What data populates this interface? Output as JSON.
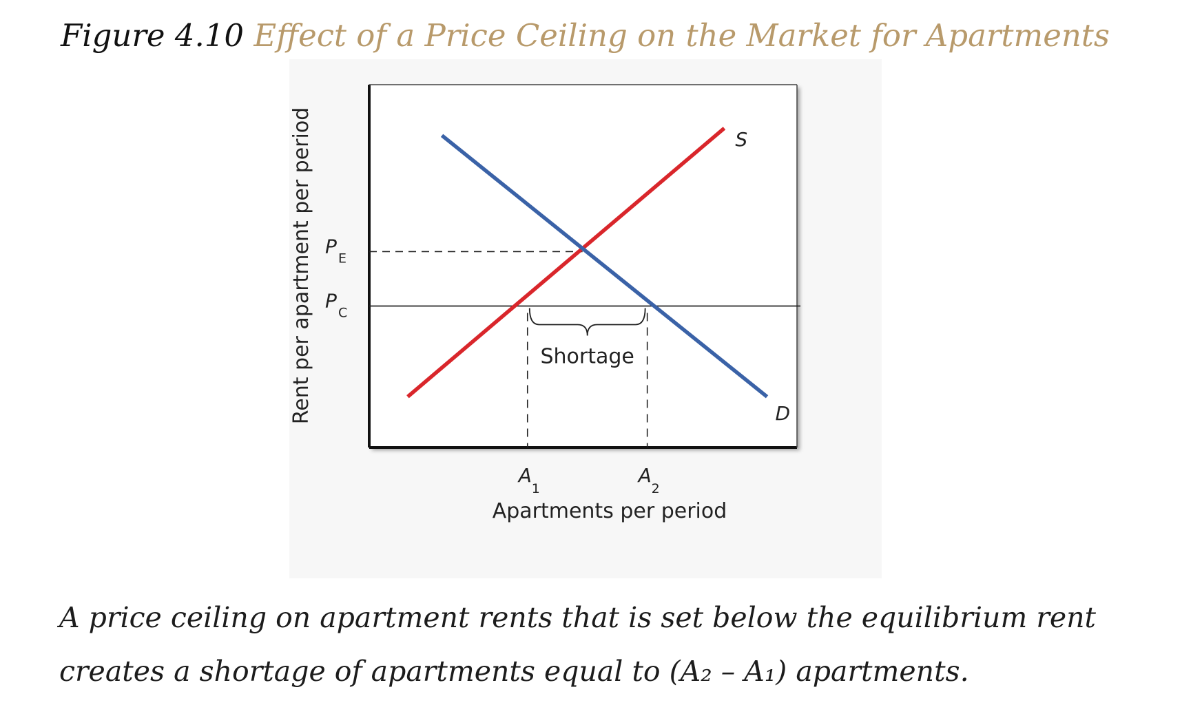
{
  "figure": {
    "label": "Figure 4.10",
    "title": "Effect of a Price Ceiling on the Market for Apartments"
  },
  "description": "A price ceiling on apartment rents that is set below the equilibrium rent creates a shortage of apartments equal to (A₂ – A₁) apartments.",
  "chart_data": {
    "type": "line",
    "title": "",
    "xlabel": "Apartments per period",
    "ylabel": "Rent per apartment per period",
    "xlim": [
      0,
      10
    ],
    "ylim": [
      0,
      10
    ],
    "grid": false,
    "legend": "none",
    "series": [
      {
        "name": "S",
        "color": "#d9262b",
        "x": [
          0.9,
          8.3
        ],
        "y": [
          1.4,
          8.8
        ]
      },
      {
        "name": "D",
        "color": "#3a62a7",
        "x": [
          1.7,
          9.3
        ],
        "y": [
          8.6,
          1.4
        ]
      }
    ],
    "x_ticks": [
      {
        "label": "A",
        "subscript": "1",
        "value": 3.7
      },
      {
        "label": "A",
        "subscript": "2",
        "value": 6.5
      }
    ],
    "y_ticks": [
      {
        "label": "P",
        "subscript": "E",
        "value": 5.4
      },
      {
        "label": "P",
        "subscript": "C",
        "value": 3.9
      }
    ],
    "annotations": {
      "shortage": "Shortage"
    }
  }
}
